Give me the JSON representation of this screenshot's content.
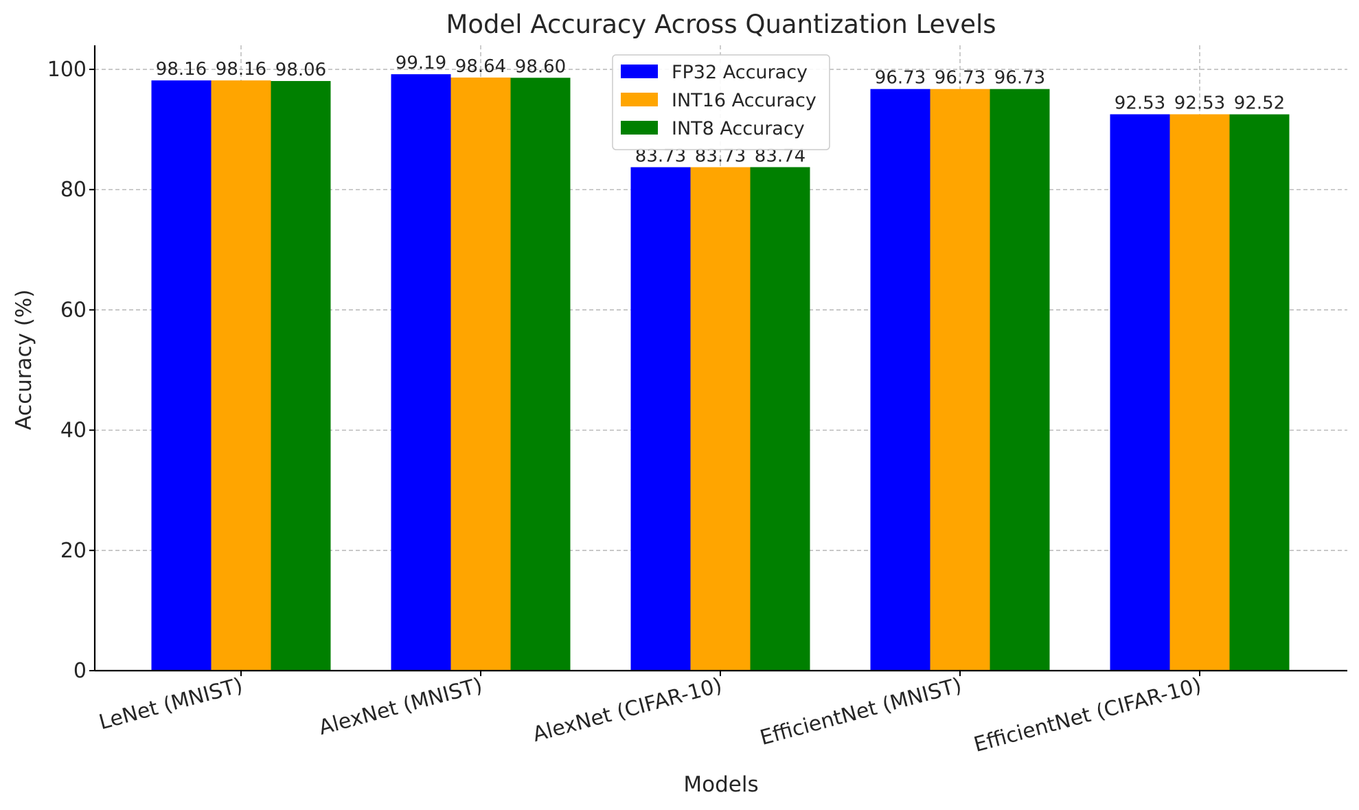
{
  "chart_data": {
    "type": "bar",
    "title": "Model Accuracy Across Quantization Levels",
    "xlabel": "Models",
    "ylabel": "Accuracy (%)",
    "categories": [
      "LeNet (MNIST)",
      "AlexNet (MNIST)",
      "AlexNet (CIFAR-10)",
      "EfficientNet (MNIST)",
      "EfficientNet (CIFAR-10)"
    ],
    "series": [
      {
        "name": "FP32 Accuracy",
        "color": "#0000ff",
        "values": [
          98.16,
          99.19,
          83.73,
          96.73,
          92.53
        ],
        "labels": [
          "98.16",
          "99.19",
          "83.73",
          "96.73",
          "92.53"
        ]
      },
      {
        "name": "INT16 Accuracy",
        "color": "#ffa500",
        "values": [
          98.16,
          98.64,
          83.73,
          96.73,
          92.53
        ],
        "labels": [
          "98.16",
          "98.64",
          "83.73",
          "96.73",
          "92.53"
        ]
      },
      {
        "name": "INT8 Accuracy",
        "color": "#008000",
        "values": [
          98.06,
          98.6,
          83.74,
          96.73,
          92.52
        ],
        "labels": [
          "98.06",
          "98.60",
          "83.74",
          "96.73",
          "92.52"
        ]
      }
    ],
    "ylim": [
      0,
      104
    ],
    "yticks": [
      0,
      20,
      40,
      60,
      80,
      100
    ],
    "ytick_labels": [
      "0",
      "20",
      "40",
      "60",
      "80",
      "100"
    ],
    "grid": true,
    "legend_position": "top-center"
  }
}
